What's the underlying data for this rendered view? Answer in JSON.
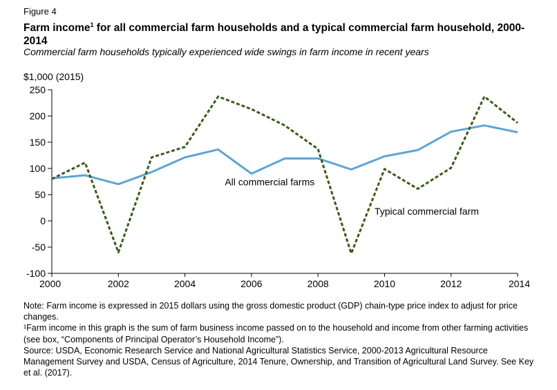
{
  "figure_label": "Figure 4",
  "title_main": "Farm income",
  "title_sup": "1",
  "title_rest": " for all commercial farm households and a typical commercial farm household, 2000-2014",
  "subtitle": "Commercial farm households typically experienced wide swings in farm income in recent years",
  "notes": [
    "Note: Farm income is expressed in 2015 dollars using the gross domestic product (GDP) chain-type price index to adjust for price changes.",
    "¹Farm income in this graph is the sum of farm business income passed on to the household and income from other farming activities (see box, “Components of Principal Operator’s Household Income”).",
    "Source: USDA, Economic Research Service and National Agricultural Statistics Service, 2000-2013 Agricultural Resource Management Survey and USDA, Census of Agriculture, 2014 Tenure, Ownership, and Transition of Agricultural Land Survey. See Key et al. (2017)."
  ],
  "chart_data": {
    "type": "line",
    "ylabel": "$1,000 (2015)",
    "xlabel": "",
    "x": [
      2000,
      2001,
      2002,
      2003,
      2004,
      2005,
      2006,
      2007,
      2008,
      2009,
      2010,
      2011,
      2012,
      2013,
      2014
    ],
    "xlim": [
      2000,
      2014
    ],
    "ylim": [
      -100,
      250
    ],
    "xticks": [
      "2000",
      "2002",
      "2004",
      "2006",
      "2008",
      "2010",
      "2012",
      "2014"
    ],
    "yticks": [
      "250",
      "200",
      "150",
      "100",
      "50",
      "0",
      "-50",
      "-100"
    ],
    "grid": false,
    "series": [
      {
        "name": "All commercial farms",
        "color": "#5ba5d6",
        "style": "solid",
        "values": [
          81,
          87,
          70,
          93,
          121,
          136,
          90,
          119,
          119,
          98,
          123,
          135,
          170,
          182,
          169
        ]
      },
      {
        "name": "Typical commercial farm",
        "color": "#3a5a1a",
        "style": "dashed",
        "values": [
          80,
          111,
          -60,
          121,
          141,
          237,
          213,
          182,
          137,
          -62,
          99,
          61,
          101,
          237,
          187
        ]
      }
    ]
  }
}
